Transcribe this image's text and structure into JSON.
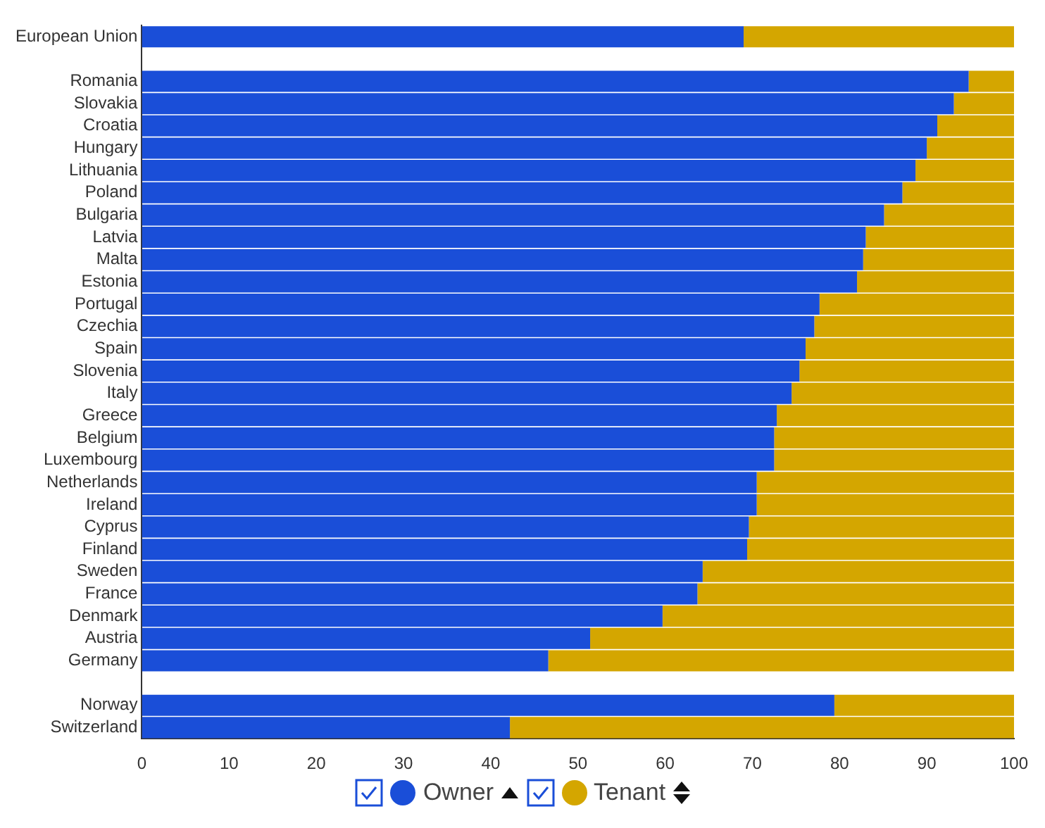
{
  "chart_data": {
    "type": "bar",
    "orientation": "horizontal",
    "stacked": true,
    "categories": [
      "European Union",
      null,
      "Romania",
      "Slovakia",
      "Croatia",
      "Hungary",
      "Lithuania",
      "Poland",
      "Bulgaria",
      "Latvia",
      "Malta",
      "Estonia",
      "Portugal",
      "Czechia",
      "Spain",
      "Slovenia",
      "Italy",
      "Greece",
      "Belgium",
      "Luxembourg",
      "Netherlands",
      "Ireland",
      "Cyprus",
      "Finland",
      "Sweden",
      "France",
      "Denmark",
      "Austria",
      "Germany",
      null,
      "Norway",
      "Switzerland"
    ],
    "series": [
      {
        "name": "Owner",
        "color": "#1a4ed8",
        "values": [
          69,
          null,
          94.8,
          93.1,
          91.2,
          90,
          88.7,
          87.2,
          85.1,
          83,
          82.7,
          82,
          77.7,
          77.1,
          76.1,
          75.4,
          74.5,
          72.8,
          72.5,
          72.5,
          70.5,
          70.5,
          69.6,
          69.4,
          64.3,
          63.7,
          59.7,
          51.4,
          46.6,
          null,
          79.4,
          42.2
        ]
      },
      {
        "name": "Tenant",
        "color": "#d4a600",
        "values": [
          31,
          null,
          5.2,
          6.9,
          8.8,
          10,
          11.3,
          12.8,
          14.9,
          17,
          17.3,
          18,
          22.3,
          22.9,
          23.9,
          24.6,
          25.5,
          27.2,
          27.5,
          27.5,
          29.5,
          29.5,
          30.4,
          30.6,
          35.7,
          36.3,
          40.3,
          48.6,
          53.4,
          null,
          20.6,
          57.8
        ]
      }
    ],
    "xlim": [
      0,
      100
    ],
    "xticks": [
      0,
      10,
      20,
      30,
      40,
      50,
      60,
      70,
      80,
      90,
      100
    ],
    "grid": false,
    "legend": "bottom"
  }
}
